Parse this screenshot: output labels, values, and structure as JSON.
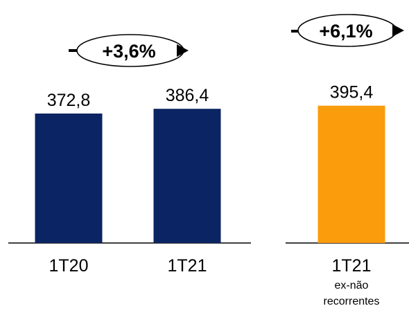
{
  "chart_data": {
    "type": "bar",
    "categories": [
      "1T20",
      "1T21",
      "1T21"
    ],
    "values": [
      372.8,
      386.4,
      395.4
    ],
    "value_labels": [
      "372,8",
      "386,4",
      "395,4"
    ],
    "category_sublabels": [
      "",
      "",
      "ex-não\nrecorrentes"
    ],
    "bar_colors": [
      "#0b2463",
      "#0b2463",
      "#fa9c0c"
    ],
    "growth_annotations": [
      {
        "label": "+3,6%",
        "from_category": 0,
        "to_category": 1
      },
      {
        "label": "+6,1%",
        "from_category": 0,
        "to_category": 2
      }
    ],
    "title": "",
    "xlabel": "",
    "ylabel": "",
    "grid": false,
    "legend": "none"
  },
  "colors": {
    "bar_primary": "#0b2463",
    "bar_highlight": "#fa9c0c",
    "axis": "#000000",
    "text": "#000000"
  }
}
